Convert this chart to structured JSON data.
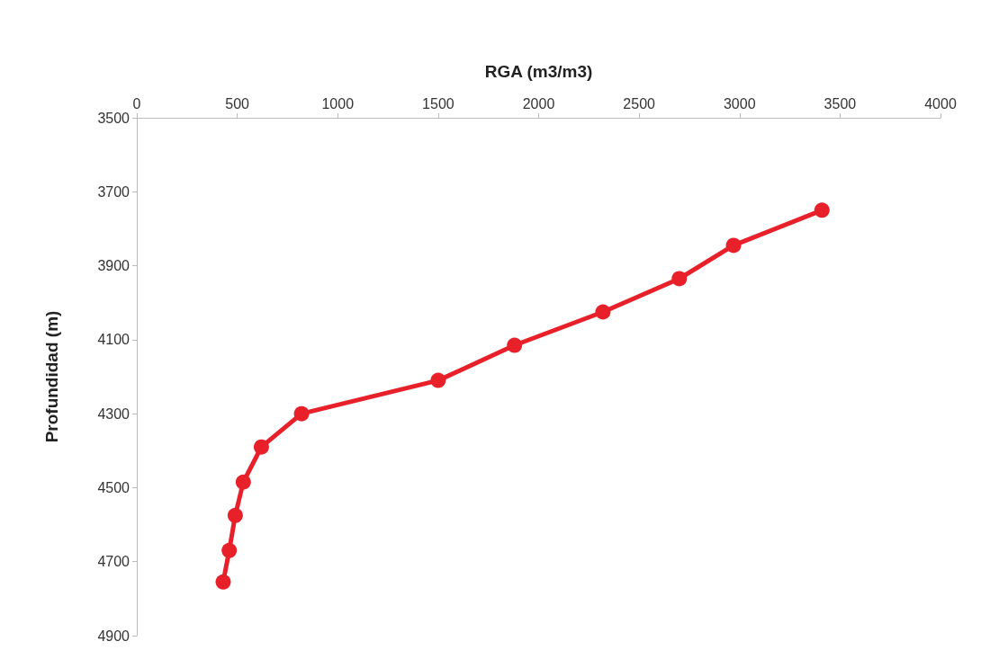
{
  "chart_data": {
    "type": "line",
    "xlabel": "RGA (m3/m3)",
    "ylabel": "Profundidad (m)",
    "series": [
      {
        "color": "#e8202a",
        "x": [
          3410,
          2970,
          2700,
          2320,
          1880,
          1500,
          820,
          620,
          530,
          490,
          460,
          430
        ],
        "values": [
          3750,
          3845,
          3935,
          4025,
          4115,
          4210,
          4300,
          4390,
          4485,
          4575,
          4670,
          4755
        ]
      }
    ],
    "xlim": [
      0,
      4000
    ],
    "xticks": [
      0,
      500,
      1000,
      1500,
      2000,
      2500,
      3000,
      3500,
      4000
    ],
    "ylim": [
      4900,
      3500
    ],
    "yticks": [
      3500,
      3700,
      3900,
      4100,
      4300,
      4500,
      4700,
      4900
    ],
    "grid": false,
    "marker": "circle",
    "line_style": "solid"
  }
}
